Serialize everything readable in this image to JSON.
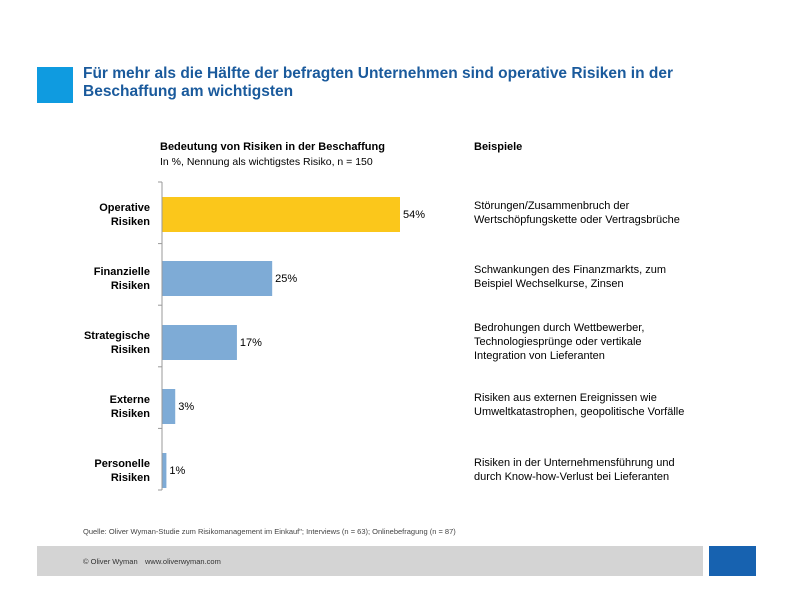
{
  "title": "Für mehr als die Hälfte der befragten Unternehmen sind operative Risiken in der Beschaffung am wichtigsten",
  "chart_heading": "Bedeutung von Risiken in der Beschaffung",
  "chart_subheading": "In %, Nennung als wichtigstes Risiko, n = 150",
  "examples_heading": "Beispiele",
  "colors": {
    "accent": "#0f9be0",
    "title": "#1a5a9c",
    "highlight_bar": "#fbc71b",
    "bar": "#7eabd6",
    "footer_square": "#1762b0",
    "footer_bar": "#d4d4d4"
  },
  "chart_data": {
    "type": "bar",
    "orientation": "horizontal",
    "title": "Bedeutung von Risiken in der Beschaffung",
    "subtitle": "In %, Nennung als wichtigstes Risiko, n = 150",
    "categories": [
      [
        "Operative",
        "Risiken"
      ],
      [
        "Finanzielle",
        "Risiken"
      ],
      [
        "Strategische",
        "Risiken"
      ],
      [
        "Externe",
        "Risiken"
      ],
      [
        "Personelle",
        "Risiken"
      ]
    ],
    "values": [
      54,
      25,
      17,
      3,
      1
    ],
    "value_labels": [
      "54%",
      "25%",
      "17%",
      "3%",
      "1%"
    ],
    "highlight_index": 0,
    "xlim": [
      0,
      60
    ],
    "grid": false
  },
  "examples": [
    [
      "Störungen/Zusammenbruch der",
      "Wertschöpfungskette oder Vertragsbrüche"
    ],
    [
      "Schwankungen des Finanzmarkts, zum",
      "Beispiel Wechselkurse, Zinsen"
    ],
    [
      "Bedrohungen durch Wettbewerber,",
      "Technologiesprünge oder vertikale",
      "Integration von Lieferanten"
    ],
    [
      "Risiken aus externen Ereignissen wie",
      "Umweltkatastrophen, geopolitische Vorfälle"
    ],
    [
      "Risiken in der Unternehmensführung und",
      "durch Know-how-Verlust bei Lieferanten"
    ]
  ],
  "source": "Quelle: Oliver Wyman-Studie zum Risikomanagement im Einkauf\"; Interviews (n = 63); Onlinebefragung (n = 87)",
  "footer": {
    "copyright": "© Oliver Wyman",
    "url": "www.oliverwyman.com"
  }
}
